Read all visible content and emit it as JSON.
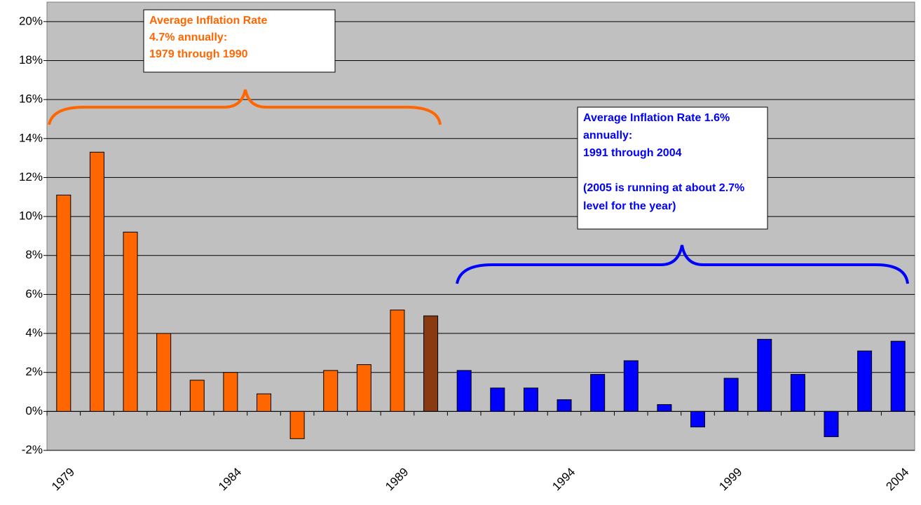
{
  "chart_data": {
    "type": "bar",
    "categories": [
      "1979",
      null,
      null,
      null,
      null,
      "1984",
      null,
      null,
      null,
      null,
      "1989",
      null,
      null,
      null,
      null,
      "1994",
      null,
      null,
      null,
      null,
      "1999",
      null,
      null,
      null,
      null,
      "2004"
    ],
    "values": [
      11.1,
      13.3,
      9.2,
      4.0,
      1.6,
      2.0,
      0.9,
      -1.4,
      2.1,
      2.4,
      5.2,
      4.9,
      2.1,
      1.2,
      1.2,
      0.6,
      1.9,
      2.6,
      0.35,
      -0.8,
      1.7,
      3.7,
      1.9,
      -1.3,
      3.1,
      3.6
    ],
    "colors": [
      "#ff6600",
      "#ff6600",
      "#ff6600",
      "#ff6600",
      "#ff6600",
      "#ff6600",
      "#ff6600",
      "#ff6600",
      "#ff6600",
      "#ff6600",
      "#ff6600",
      "#8a3a10",
      "#0000ff",
      "#0000ff",
      "#0000ff",
      "#0000ff",
      "#0000ff",
      "#0000ff",
      "#0000ff",
      "#0000ff",
      "#0000ff",
      "#0000ff",
      "#0000ff",
      "#0000ff",
      "#0000ff",
      "#0000ff"
    ],
    "ylim": [
      -2,
      21
    ],
    "yticks": [
      {
        "value": -2,
        "label": "-2%"
      },
      {
        "value": 0,
        "label": "0%"
      },
      {
        "value": 2,
        "label": "2%"
      },
      {
        "value": 4,
        "label": "4%"
      },
      {
        "value": 6,
        "label": "6%"
      },
      {
        "value": 8,
        "label": "8%"
      },
      {
        "value": 10,
        "label": "10%"
      },
      {
        "value": 12,
        "label": "12%"
      },
      {
        "value": 14,
        "label": "14%"
      },
      {
        "value": 16,
        "label": "16%"
      },
      {
        "value": 18,
        "label": "18%"
      },
      {
        "value": 20,
        "label": "20%"
      }
    ],
    "grid": true,
    "annotations": [
      {
        "color": "#ff6600",
        "lines": [
          "Average Inflation Rate",
          "4.7% annually:",
          "1979 through 1990"
        ]
      },
      {
        "color": "#0000ff",
        "lines": [
          "Average Inflation Rate  1.6%",
          "annually:",
          "1991 through 2004"
        ],
        "note": [
          "(2005 is running at about 2.7%",
          "level for the year)"
        ]
      }
    ]
  }
}
